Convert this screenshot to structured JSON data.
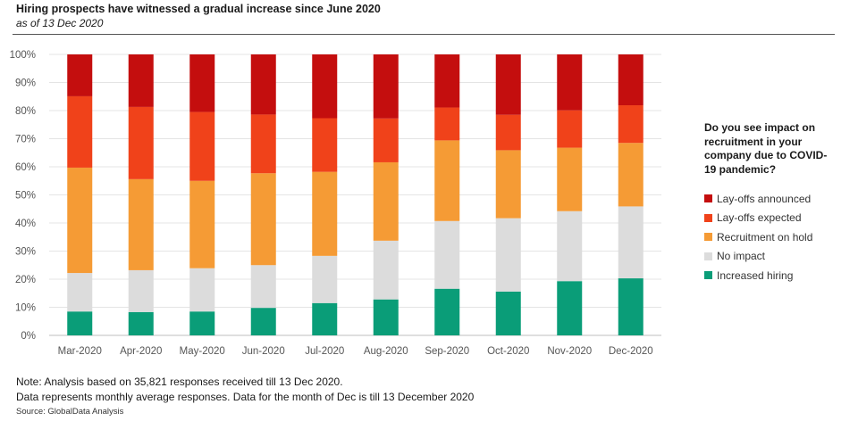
{
  "header": {
    "title": "Hiring prospects have witnessed a gradual increase since June 2020",
    "subtitle": "as of 13 Dec 2020"
  },
  "legend": {
    "title": "Do you see impact on recruitment in your company due to COVID-19 pandemic?"
  },
  "footer": {
    "note1": "Note: Analysis based on 35,821 responses received till 13 Dec 2020.",
    "note2": "Data represents monthly average responses. Data for the month of Dec is till 13 December 2020",
    "source": "Source: GlobalData Analysis"
  },
  "chart_data": {
    "type": "bar",
    "stacked": true,
    "percent": true,
    "categories": [
      "Mar-2020",
      "Apr-2020",
      "May-2020",
      "Jun-2020",
      "Jul-2020",
      "Aug-2020",
      "Sep-2020",
      "Oct-2020",
      "Nov-2020",
      "Dec-2020"
    ],
    "ylim": [
      0,
      100
    ],
    "yticks": [
      "0%",
      "10%",
      "20%",
      "30%",
      "40%",
      "50%",
      "60%",
      "70%",
      "80%",
      "90%",
      "100%"
    ],
    "grid": true,
    "legend_position": "right",
    "series": [
      {
        "name": "Increased hiring",
        "color": "#0a9d78",
        "values": [
          8.5,
          8.3,
          8.5,
          9.8,
          11.5,
          12.8,
          16.6,
          15.6,
          19.3,
          20.3
        ]
      },
      {
        "name": "No impact",
        "color": "#dcdcdc",
        "values": [
          13.7,
          14.9,
          15.4,
          15.2,
          16.8,
          20.9,
          24.1,
          26.1,
          24.9,
          25.6
        ]
      },
      {
        "name": "Recruitment on hold",
        "color": "#f59b35",
        "values": [
          37.5,
          32.4,
          31.1,
          32.7,
          29.9,
          27.9,
          28.7,
          24.2,
          22.6,
          22.6
        ]
      },
      {
        "name": "Lay-offs expected",
        "color": "#f0421a",
        "values": [
          25.4,
          25.7,
          24.5,
          20.9,
          19.1,
          15.6,
          11.7,
          12.6,
          13.3,
          13.4
        ]
      },
      {
        "name": "Lay-offs announced",
        "color": "#c40e0e",
        "values": [
          14.9,
          18.7,
          20.5,
          21.4,
          22.7,
          22.8,
          18.9,
          21.5,
          19.9,
          18.1
        ]
      }
    ],
    "legend_order": [
      "Lay-offs announced",
      "Lay-offs expected",
      "Recruitment on hold",
      "No impact",
      "Increased hiring"
    ]
  }
}
